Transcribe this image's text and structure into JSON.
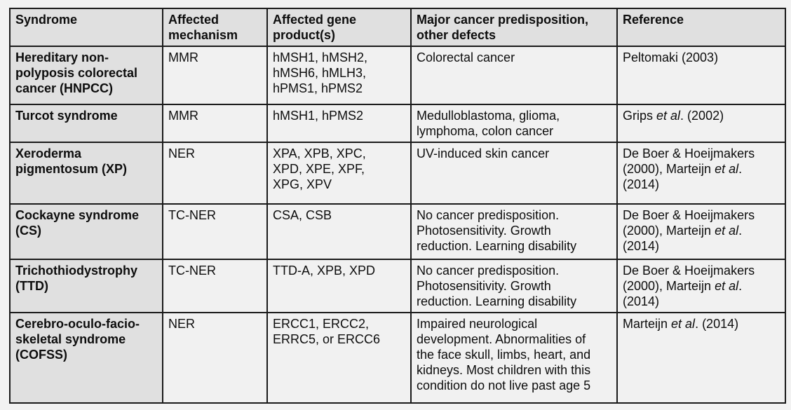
{
  "colors": {
    "page_background": "#f2f2f2",
    "header_and_syndrome_column_bg": "#e0e0e0",
    "data_cell_bg": "#f1f1f1",
    "border": "#1a1a1a",
    "text": "#0d0d0d"
  },
  "table": {
    "columns": [
      "Syndrome",
      "Affected\nmechanism",
      "Affected gene\nproduct(s)",
      "Major cancer predisposition,\nother defects",
      "Reference"
    ],
    "rows": [
      {
        "syndrome": "Hereditary non-\npolyposis colorectal\ncancer (HNPCC)",
        "mechanism": "MMR",
        "genes": "hMSH1, hMSH2,\nhMSH6, hMLH3,\nhPMS1, hPMS2",
        "defects": "Colorectal cancer",
        "reference": [
          {
            "t": "Peltomaki (2003)"
          }
        ]
      },
      {
        "syndrome": "Turcot syndrome",
        "mechanism": "MMR",
        "genes": "hMSH1, hPMS2",
        "defects": "Medulloblastoma, glioma,\nlymphoma, colon cancer",
        "reference": [
          {
            "t": "Grips "
          },
          {
            "t": "et al",
            "i": true
          },
          {
            "t": ". (2002)"
          }
        ]
      },
      {
        "syndrome": "Xeroderma\npigmentosum (XP)",
        "mechanism": "NER",
        "genes": "XPA, XPB, XPC,\nXPD, XPE, XPF,\nXPG, XPV",
        "defects": "UV-induced skin cancer",
        "reference": [
          {
            "t": "De Boer & Hoeijmakers\n(2000), Marteijn "
          },
          {
            "t": "et al",
            "i": true
          },
          {
            "t": ".\n(2014)"
          }
        ]
      },
      {
        "syndrome": "Cockayne syndrome\n(CS)",
        "mechanism": "TC-NER",
        "genes": "CSA, CSB",
        "defects": "No cancer predisposition.\nPhotosensitivity. Growth\nreduction. Learning disability",
        "reference": [
          {
            "t": "De Boer & Hoeijmakers\n(2000), Marteijn "
          },
          {
            "t": "et al",
            "i": true
          },
          {
            "t": ".\n(2014)"
          }
        ]
      },
      {
        "syndrome": "Trichothiodystrophy\n(TTD)",
        "mechanism": "TC-NER",
        "genes": "TTD-A, XPB, XPD",
        "defects": "No cancer predisposition.\nPhotosensitivity. Growth\nreduction. Learning disability",
        "reference": [
          {
            "t": "De Boer & Hoeijmakers\n(2000), Marteijn "
          },
          {
            "t": "et al",
            "i": true
          },
          {
            "t": ".\n(2014)"
          }
        ]
      },
      {
        "syndrome": "Cerebro-oculo-facio-\nskeletal syndrome\n(COFSS)",
        "mechanism": "NER",
        "genes": "ERCC1, ERCC2,\nERRC5, or ERCC6",
        "defects": "Impaired neurological\ndevelopment. Abnormalities of\nthe face skull, limbs, heart, and\nkidneys. Most children with this\ncondition do not live past age 5",
        "reference": [
          {
            "t": "Marteijn "
          },
          {
            "t": "et al",
            "i": true
          },
          {
            "t": ". (2014)"
          }
        ]
      }
    ]
  }
}
